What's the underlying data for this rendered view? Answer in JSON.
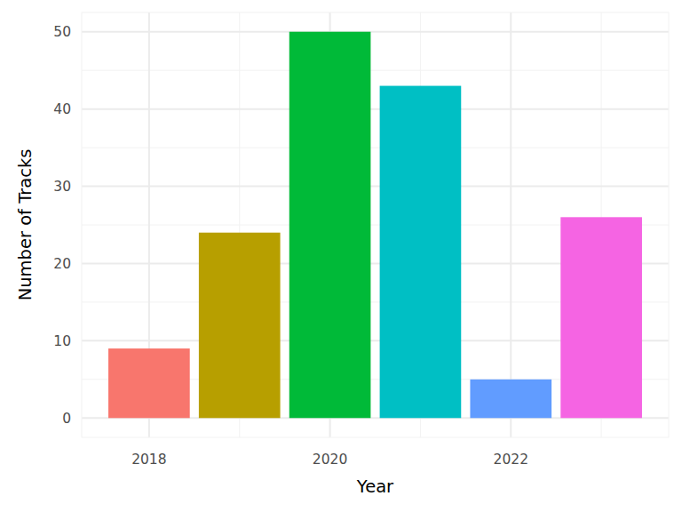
{
  "chart_data": {
    "type": "bar",
    "x_label": "Year",
    "y_label": "Number of Tracks",
    "x": [
      2018,
      2019,
      2020,
      2021,
      2022,
      2023
    ],
    "values": [
      9,
      24,
      50,
      43,
      5,
      26
    ],
    "colors": [
      "#F8766D",
      "#B79F00",
      "#00BA38",
      "#00BFC4",
      "#619CFF",
      "#F564E3"
    ],
    "xlim": [
      2017.255,
      2023.745
    ],
    "xticks": [
      2018,
      2020,
      2022
    ],
    "ylim": [
      -2.5,
      52.5
    ],
    "yticks": [
      0,
      10,
      20,
      30,
      40,
      50
    ],
    "grid": true
  }
}
